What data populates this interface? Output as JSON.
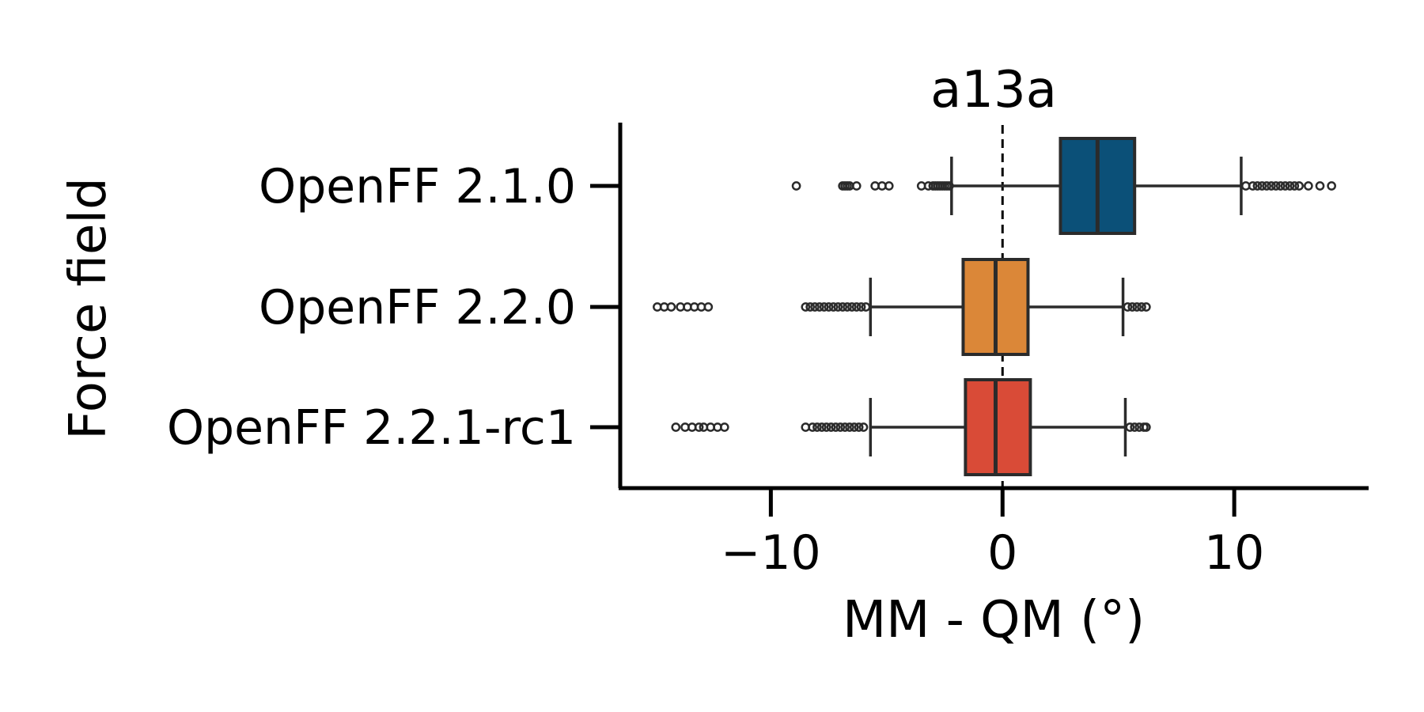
{
  "chart_data": {
    "type": "boxplot",
    "orientation": "horizontal",
    "title": "a13a",
    "xlabel": "MM - QM (°)",
    "ylabel": "Force field",
    "xlim": [
      -16.5,
      15.8
    ],
    "xticks": [
      {
        "value": -10,
        "label": "−10"
      },
      {
        "value": 0,
        "label": "0"
      },
      {
        "value": 10,
        "label": "10"
      }
    ],
    "reference_line": {
      "value": 0,
      "style": "dashed"
    },
    "grid": false,
    "legend": "none",
    "series": [
      {
        "category": "OpenFF 2.1.0",
        "color": "#0B5078",
        "whisker_low": -2.2,
        "q1": 2.5,
        "median": 4.1,
        "q3": 5.7,
        "whisker_high": 10.3,
        "outliers": [
          -8.9,
          -6.9,
          -6.8,
          -6.7,
          -6.6,
          -6.3,
          -5.5,
          -5.2,
          -4.9,
          -3.5,
          -3.2,
          -3.0,
          -2.9,
          -2.8,
          -2.7,
          -2.6,
          -2.5,
          -2.4,
          -2.3,
          10.5,
          10.8,
          11.0,
          11.2,
          11.4,
          11.6,
          11.8,
          12.0,
          12.2,
          12.4,
          12.6,
          12.8,
          13.2,
          13.7,
          14.2
        ]
      },
      {
        "category": "OpenFF 2.2.0",
        "color": "#DB8738",
        "whisker_low": -5.7,
        "q1": -1.7,
        "median": -0.3,
        "q3": 1.1,
        "whisker_high": 5.2,
        "outliers": [
          -14.9,
          -14.6,
          -14.3,
          -13.9,
          -13.6,
          -13.3,
          -13.0,
          -12.7,
          -8.5,
          -8.3,
          -8.1,
          -7.9,
          -7.7,
          -7.5,
          -7.3,
          -7.1,
          -6.9,
          -6.7,
          -6.5,
          -6.3,
          -6.1,
          -5.9,
          5.4,
          5.6,
          5.8,
          6.0,
          6.2
        ]
      },
      {
        "category": "OpenFF 2.2.1-rc1",
        "color": "#D94B37",
        "whisker_low": -5.7,
        "q1": -1.6,
        "median": -0.3,
        "q3": 1.2,
        "whisker_high": 5.3,
        "outliers": [
          -14.1,
          -13.7,
          -13.4,
          -13.1,
          -12.9,
          -12.6,
          -12.3,
          -12.0,
          -8.5,
          -8.2,
          -8.0,
          -7.8,
          -7.6,
          -7.4,
          -7.2,
          -7.0,
          -6.8,
          -6.6,
          -6.4,
          -6.2,
          -6.0,
          5.5,
          5.7,
          5.9,
          6.1,
          6.2
        ]
      }
    ]
  }
}
